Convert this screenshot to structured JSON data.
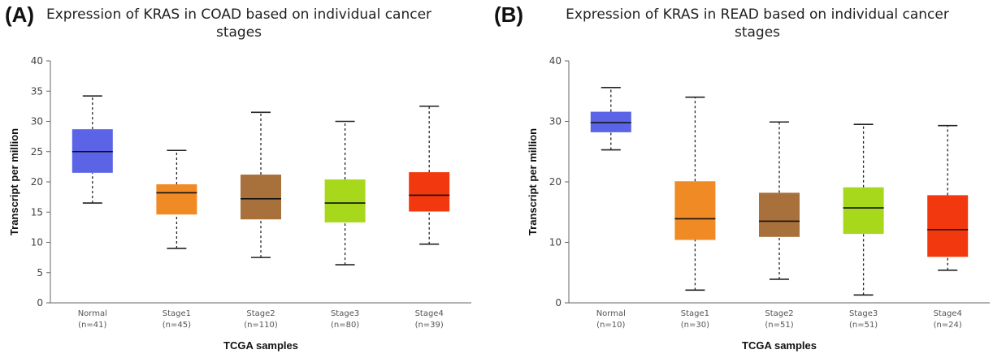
{
  "chart_data": [
    {
      "panel": "(A)",
      "type": "box",
      "title": "Expression of KRAS in COAD based on individual cancer stages",
      "title_lines": [
        "Expression of KRAS in COAD based on individual cancer",
        "stages"
      ],
      "xlabel": "TCGA samples",
      "ylabel": "Transcript per million",
      "ylim": [
        0,
        40
      ],
      "yticks": [
        0,
        5,
        10,
        15,
        20,
        25,
        30,
        35,
        40
      ],
      "grid": false,
      "groups": [
        {
          "name": "Normal",
          "n": "(n=41)",
          "color": "#5b64e6",
          "min": 16.5,
          "q1": 21.5,
          "median": 25.0,
          "q3": 28.7,
          "max": 34.2
        },
        {
          "name": "Stage1",
          "n": "(n=45)",
          "color": "#f08a24",
          "min": 9.0,
          "q1": 14.6,
          "median": 18.2,
          "q3": 19.6,
          "max": 25.2
        },
        {
          "name": "Stage2",
          "n": "(n=110)",
          "color": "#a8703a",
          "min": 7.5,
          "q1": 13.8,
          "median": 17.2,
          "q3": 21.2,
          "max": 31.5
        },
        {
          "name": "Stage3",
          "n": "(n=80)",
          "color": "#a8d81c",
          "min": 6.3,
          "q1": 13.3,
          "median": 16.5,
          "q3": 20.4,
          "max": 30.0
        },
        {
          "name": "Stage4",
          "n": "(n=39)",
          "color": "#f2380f",
          "min": 9.7,
          "q1": 15.1,
          "median": 17.8,
          "q3": 21.6,
          "max": 32.5
        }
      ]
    },
    {
      "panel": "(B)",
      "type": "box",
      "title": "Expression of KRAS in READ based on individual cancer stages",
      "title_lines": [
        "Expression of KRAS in READ based on individual cancer",
        "stages"
      ],
      "xlabel": "TCGA samples",
      "ylabel": "Transcript per million",
      "ylim": [
        0,
        40
      ],
      "yticks": [
        0,
        10,
        20,
        30,
        40
      ],
      "grid": false,
      "groups": [
        {
          "name": "Normal",
          "n": "(n=10)",
          "color": "#5b64e6",
          "min": 25.3,
          "q1": 28.2,
          "median": 29.8,
          "q3": 31.6,
          "max": 35.6
        },
        {
          "name": "Stage1",
          "n": "(n=30)",
          "color": "#f08a24",
          "min": 2.1,
          "q1": 10.4,
          "median": 13.9,
          "q3": 20.1,
          "max": 34.0
        },
        {
          "name": "Stage2",
          "n": "(n=51)",
          "color": "#a8703a",
          "min": 3.9,
          "q1": 10.9,
          "median": 13.5,
          "q3": 18.2,
          "max": 29.9
        },
        {
          "name": "Stage3",
          "n": "(n=51)",
          "color": "#a8d81c",
          "min": 1.3,
          "q1": 11.4,
          "median": 15.7,
          "q3": 19.1,
          "max": 29.5
        },
        {
          "name": "Stage4",
          "n": "(n=24)",
          "color": "#f2380f",
          "min": 5.4,
          "q1": 7.6,
          "median": 12.1,
          "q3": 17.8,
          "max": 29.3
        }
      ]
    }
  ]
}
